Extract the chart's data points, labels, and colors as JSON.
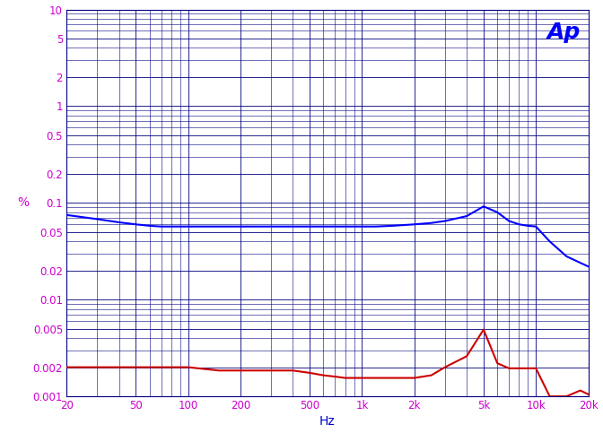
{
  "title": "",
  "xlabel": "Hz",
  "ylabel": "%",
  "xlim": [
    20,
    20000
  ],
  "ylim": [
    0.001,
    10
  ],
  "bg_color": "#ffffff",
  "grid_major_color": "#000080",
  "grid_minor_color": "#000080",
  "ap_text": "Ap",
  "ap_color": "#0000ff",
  "blue_line": {
    "color": "#0000ff",
    "freqs": [
      20,
      30,
      40,
      50,
      60,
      70,
      80,
      100,
      120,
      150,
      200,
      300,
      400,
      500,
      600,
      700,
      800,
      1000,
      1200,
      1500,
      2000,
      2500,
      3000,
      4000,
      5000,
      6000,
      7000,
      8000,
      9000,
      10000,
      12000,
      15000,
      20000
    ],
    "values": [
      0.075,
      0.068,
      0.063,
      0.06,
      0.058,
      0.057,
      0.057,
      0.057,
      0.057,
      0.057,
      0.057,
      0.057,
      0.057,
      0.057,
      0.057,
      0.057,
      0.057,
      0.057,
      0.057,
      0.058,
      0.06,
      0.062,
      0.065,
      0.073,
      0.092,
      0.08,
      0.065,
      0.06,
      0.058,
      0.057,
      0.04,
      0.028,
      0.022
    ]
  },
  "red_line": {
    "color": "#cc0000",
    "freqs": [
      20,
      30,
      40,
      50,
      60,
      70,
      80,
      100,
      150,
      200,
      300,
      400,
      500,
      600,
      700,
      800,
      1000,
      1200,
      1500,
      2000,
      2500,
      3000,
      4000,
      5000,
      6000,
      7000,
      8000,
      9000,
      10000,
      12000,
      15000,
      18000,
      20000
    ],
    "values": [
      0.002,
      0.002,
      0.002,
      0.002,
      0.002,
      0.002,
      0.002,
      0.002,
      0.00185,
      0.00185,
      0.00185,
      0.00185,
      0.00175,
      0.00165,
      0.0016,
      0.00155,
      0.00155,
      0.00155,
      0.00155,
      0.00155,
      0.00165,
      0.002,
      0.0026,
      0.0049,
      0.0022,
      0.00195,
      0.00195,
      0.00195,
      0.00195,
      0.001,
      0.001,
      0.00115,
      0.00105
    ]
  },
  "yticks": [
    0.001,
    0.002,
    0.005,
    0.01,
    0.02,
    0.05,
    0.1,
    0.2,
    0.5,
    1,
    2,
    5,
    10
  ],
  "ytick_labels": [
    "0.001",
    "0.002",
    "0.005",
    "0.01",
    "0.02",
    "0.05",
    "0.1",
    "0.2",
    "0.5",
    "1",
    "2",
    "5",
    "10"
  ],
  "xticks": [
    20,
    50,
    100,
    200,
    500,
    1000,
    2000,
    5000,
    10000,
    20000
  ],
  "xtick_labels": [
    "20",
    "50",
    "100",
    "200",
    "500",
    "1k",
    "2k",
    "5k",
    "10k",
    "20k"
  ],
  "tick_label_color": "#cc00cc",
  "axis_label_color": "#0000cc",
  "ylabel_color": "#cc00cc"
}
